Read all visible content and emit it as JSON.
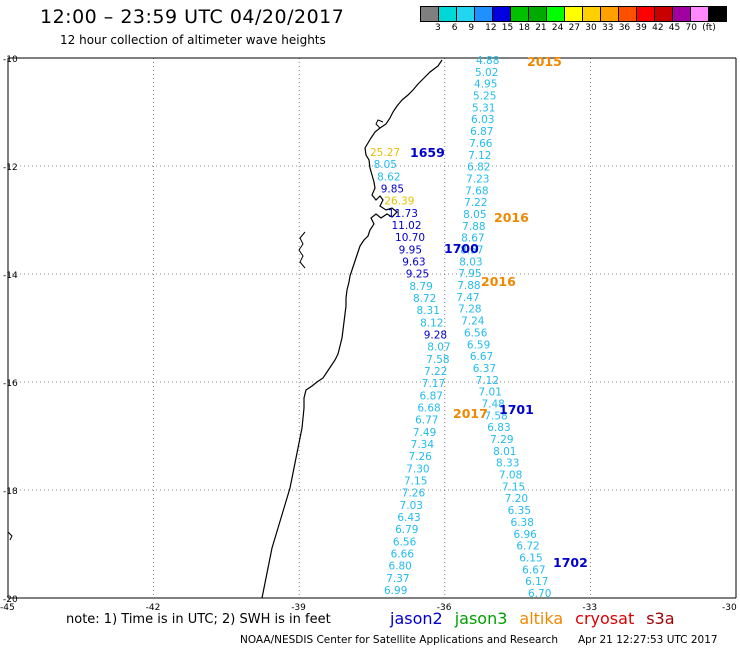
{
  "header": {
    "title": "12:00 – 23:59 UTC 04/20/2017",
    "subtitle": "12 hour collection of altimeter wave heights"
  },
  "color_scale": {
    "unit": "(ft)",
    "ticks": [
      "3",
      "6",
      "9",
      "12",
      "15",
      "18",
      "21",
      "24",
      "27",
      "30",
      "33",
      "36",
      "39",
      "42",
      "45",
      "70"
    ],
    "colors": [
      "#7f7f7f",
      "#00d8d8",
      "#22d6f0",
      "#1e90ff",
      "#0000e0",
      "#00c000",
      "#00aa00",
      "#00ff00",
      "#ffff00",
      "#ffd000",
      "#ffa000",
      "#ff5000",
      "#ff0000",
      "#c80000",
      "#a000a0",
      "#ff88ff",
      "#000000"
    ]
  },
  "map": {
    "lat_labels": [
      "-10",
      "-12",
      "-14",
      "-16",
      "-18",
      "-20"
    ],
    "lon_labels": [
      "-45",
      "-42",
      "-39",
      "-36",
      "-33",
      "-30"
    ],
    "track_colors": {
      "cyan": "#22bbee",
      "blue": "#0000cc",
      "yellow": "#e8c000",
      "orange": "#ee8800"
    },
    "pass_labels": [
      {
        "text": "2015",
        "color": "orange"
      },
      {
        "text": "1659",
        "color": "blue"
      },
      {
        "text": "2016",
        "color": "orange"
      },
      {
        "text": "1700",
        "color": "blue"
      },
      {
        "text": "2016",
        "color": "orange"
      },
      {
        "text": "2017",
        "color": "orange"
      },
      {
        "text": "1701",
        "color": "blue"
      },
      {
        "text": "1702",
        "color": "blue"
      }
    ],
    "track_a": [
      {
        "v": "4.88",
        "c": "cyan"
      },
      {
        "v": "5.02",
        "c": "cyan"
      },
      {
        "v": "4.95",
        "c": "cyan"
      },
      {
        "v": "5.25",
        "c": "cyan"
      },
      {
        "v": "5.31",
        "c": "cyan"
      },
      {
        "v": "6.03",
        "c": "cyan"
      },
      {
        "v": "6.87",
        "c": "cyan"
      },
      {
        "v": "7.66",
        "c": "cyan"
      },
      {
        "v": "7.12",
        "c": "cyan"
      },
      {
        "v": "6.82",
        "c": "cyan"
      },
      {
        "v": "7.23",
        "c": "cyan"
      },
      {
        "v": "7.68",
        "c": "cyan"
      },
      {
        "v": "7.22",
        "c": "cyan"
      },
      {
        "v": "8.05",
        "c": "cyan"
      },
      {
        "v": "7.88",
        "c": "cyan"
      },
      {
        "v": "8.67",
        "c": "cyan"
      },
      {
        "v": "8.57",
        "c": "cyan"
      },
      {
        "v": "8.03",
        "c": "cyan"
      },
      {
        "v": "7.95",
        "c": "cyan"
      },
      {
        "v": "7.88",
        "c": "cyan"
      },
      {
        "v": "7.47",
        "c": "cyan"
      },
      {
        "v": "7.28",
        "c": "cyan"
      },
      {
        "v": "7.24",
        "c": "cyan"
      },
      {
        "v": "6.56",
        "c": "cyan"
      },
      {
        "v": "6.59",
        "c": "cyan"
      },
      {
        "v": "6.67",
        "c": "cyan"
      },
      {
        "v": "6.37",
        "c": "cyan"
      },
      {
        "v": "7.12",
        "c": "cyan"
      },
      {
        "v": "7.01",
        "c": "cyan"
      },
      {
        "v": "7.48",
        "c": "cyan"
      },
      {
        "v": "7.58",
        "c": "cyan"
      },
      {
        "v": "6.83",
        "c": "cyan"
      },
      {
        "v": "7.29",
        "c": "cyan"
      },
      {
        "v": "8.01",
        "c": "cyan"
      },
      {
        "v": "8.33",
        "c": "cyan"
      },
      {
        "v": "7.08",
        "c": "cyan"
      },
      {
        "v": "7.15",
        "c": "cyan"
      },
      {
        "v": "7.20",
        "c": "cyan"
      },
      {
        "v": "6.35",
        "c": "cyan"
      },
      {
        "v": "6.38",
        "c": "cyan"
      },
      {
        "v": "6.96",
        "c": "cyan"
      },
      {
        "v": "6.72",
        "c": "cyan"
      },
      {
        "v": "6.15",
        "c": "cyan"
      },
      {
        "v": "6.67",
        "c": "cyan"
      },
      {
        "v": "6.17",
        "c": "cyan"
      },
      {
        "v": "6.70",
        "c": "cyan"
      }
    ],
    "track_b": [
      {
        "v": "25.27",
        "c": "yellow"
      },
      {
        "v": "8.05",
        "c": "cyan"
      },
      {
        "v": "8.62",
        "c": "cyan"
      },
      {
        "v": "9.85",
        "c": "blue"
      },
      {
        "v": "26.39",
        "c": "yellow"
      },
      {
        "v": "11.73",
        "c": "blue"
      },
      {
        "v": "11.02",
        "c": "blue"
      },
      {
        "v": "10.70",
        "c": "blue"
      },
      {
        "v": "9.95",
        "c": "blue"
      },
      {
        "v": "9.63",
        "c": "blue"
      },
      {
        "v": "9.25",
        "c": "blue"
      },
      {
        "v": "8.79",
        "c": "cyan"
      },
      {
        "v": "8.72",
        "c": "cyan"
      },
      {
        "v": "8.31",
        "c": "cyan"
      },
      {
        "v": "8.12",
        "c": "cyan"
      },
      {
        "v": "9.28",
        "c": "blue"
      },
      {
        "v": "8.07",
        "c": "cyan"
      },
      {
        "v": "7.58",
        "c": "cyan"
      },
      {
        "v": "7.22",
        "c": "cyan"
      },
      {
        "v": "7.17",
        "c": "cyan"
      },
      {
        "v": "6.87",
        "c": "cyan"
      },
      {
        "v": "6.68",
        "c": "cyan"
      },
      {
        "v": "6.77",
        "c": "cyan"
      },
      {
        "v": "7.49",
        "c": "cyan"
      },
      {
        "v": "7.34",
        "c": "cyan"
      },
      {
        "v": "7.26",
        "c": "cyan"
      },
      {
        "v": "7.30",
        "c": "cyan"
      },
      {
        "v": "7.15",
        "c": "cyan"
      },
      {
        "v": "7.26",
        "c": "cyan"
      },
      {
        "v": "7.03",
        "c": "cyan"
      },
      {
        "v": "6.43",
        "c": "cyan"
      },
      {
        "v": "6.79",
        "c": "cyan"
      },
      {
        "v": "6.56",
        "c": "cyan"
      },
      {
        "v": "6.66",
        "c": "cyan"
      },
      {
        "v": "6.80",
        "c": "cyan"
      },
      {
        "v": "7.37",
        "c": "cyan"
      },
      {
        "v": "6.99",
        "c": "cyan"
      }
    ]
  },
  "footer": {
    "note": "note: 1) Time is in UTC; 2) SWH is in feet",
    "satellites": [
      {
        "name": "jason2",
        "color": "#0000cc"
      },
      {
        "name": "jason3",
        "color": "#00a000"
      },
      {
        "name": "altika",
        "color": "#ee8800"
      },
      {
        "name": "cryosat",
        "color": "#dd0000"
      },
      {
        "name": "s3a",
        "color": "#990000"
      }
    ],
    "credit": "NOAA/NESDIS Center for Satellite Applications and Research",
    "timestamp": "Apr 21 12:27:53 UTC 2017"
  }
}
